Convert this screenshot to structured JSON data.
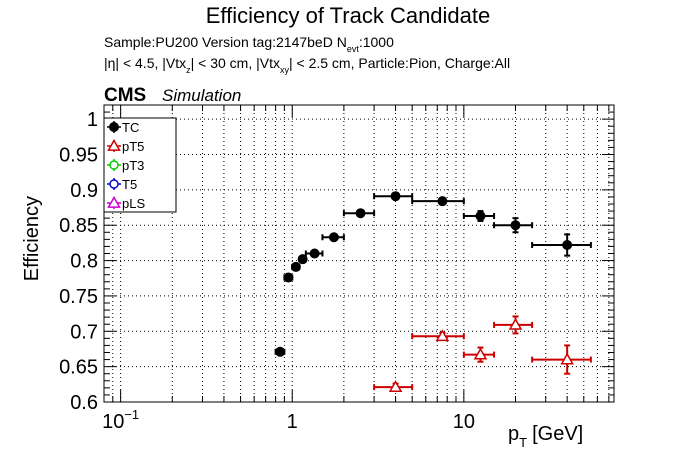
{
  "title": "Efficiency of Track Candidate",
  "info": {
    "sample_prefix": "Sample:PU200   Version tag:2147beD  N",
    "sample_sub": "evt",
    "sample_suffix": ":1000",
    "cuts": [
      {
        "text": "|η| < 4.5, |Vtx",
        "sub": false
      },
      {
        "text": "z",
        "sub": true
      },
      {
        "text": "| < 30 cm, |Vtx",
        "sub": false
      },
      {
        "text": "xy",
        "sub": true
      },
      {
        "text": "| < 2.5 cm, Particle:Pion, Charge:All",
        "sub": false
      }
    ]
  },
  "cms_label": "CMS",
  "simulation_label": "Simulation",
  "chart_data": {
    "type": "scatter",
    "title": "Efficiency of Track Candidate",
    "xlabel": "p",
    "xlabel_sub": "T",
    "xlabel_unit": "[GeV]",
    "ylabel": "Efficiency",
    "x_scale": "log",
    "xlim": [
      0.08,
      75
    ],
    "ylim": [
      0.6,
      1.02
    ],
    "grid": true,
    "legend_position": "top-left",
    "y_ticks": [
      0.6,
      0.65,
      0.7,
      0.75,
      0.8,
      0.85,
      0.9,
      0.95,
      1
    ],
    "y_tick_labels": [
      "0.6",
      "0.65",
      "0.7",
      "0.75",
      "0.8",
      "0.85",
      "0.9",
      "0.95",
      "1"
    ],
    "x_tick_labels": [
      {
        "value": 0.1,
        "base": "10",
        "exp": "−1"
      },
      {
        "value": 1,
        "base": "1",
        "exp": ""
      },
      {
        "value": 10,
        "base": "10",
        "exp": ""
      }
    ],
    "series": [
      {
        "name": "TC",
        "color": "#000000",
        "marker": "circle-filled",
        "points": [
          {
            "x": 0.85,
            "xlo": 0.8,
            "xhi": 0.9,
            "y": 0.671,
            "ylo": 0.667,
            "yhi": 0.675
          },
          {
            "x": 0.95,
            "xlo": 0.9,
            "xhi": 1.0,
            "y": 0.776,
            "ylo": 0.772,
            "yhi": 0.78
          },
          {
            "x": 1.05,
            "xlo": 1.0,
            "xhi": 1.1,
            "y": 0.791,
            "ylo": 0.787,
            "yhi": 0.795
          },
          {
            "x": 1.15,
            "xlo": 1.1,
            "xhi": 1.2,
            "y": 0.802,
            "ylo": 0.798,
            "yhi": 0.806
          },
          {
            "x": 1.35,
            "xlo": 1.2,
            "xhi": 1.5,
            "y": 0.81,
            "ylo": 0.807,
            "yhi": 0.813
          },
          {
            "x": 1.75,
            "xlo": 1.5,
            "xhi": 2.0,
            "y": 0.833,
            "ylo": 0.83,
            "yhi": 0.836
          },
          {
            "x": 2.5,
            "xlo": 2.0,
            "xhi": 3.0,
            "y": 0.867,
            "ylo": 0.864,
            "yhi": 0.87
          },
          {
            "x": 4.0,
            "xlo": 3.0,
            "xhi": 5.0,
            "y": 0.891,
            "ylo": 0.888,
            "yhi": 0.894
          },
          {
            "x": 7.5,
            "xlo": 5.0,
            "xhi": 10.0,
            "y": 0.884,
            "ylo": 0.881,
            "yhi": 0.887
          },
          {
            "x": 12.5,
            "xlo": 10.0,
            "xhi": 15.0,
            "y": 0.863,
            "ylo": 0.856,
            "yhi": 0.87
          },
          {
            "x": 20.0,
            "xlo": 15.0,
            "xhi": 25.0,
            "y": 0.85,
            "ylo": 0.84,
            "yhi": 0.86
          },
          {
            "x": 40.0,
            "xlo": 25.0,
            "xhi": 55.0,
            "y": 0.822,
            "ylo": 0.807,
            "yhi": 0.837
          }
        ]
      },
      {
        "name": "pT5",
        "color": "#cc0000",
        "marker": "triangle-open",
        "points": [
          {
            "x": 4.0,
            "xlo": 3.0,
            "xhi": 5.0,
            "y": 0.621,
            "ylo": 0.616,
            "yhi": 0.626
          },
          {
            "x": 7.5,
            "xlo": 5.0,
            "xhi": 10.0,
            "y": 0.693,
            "ylo": 0.688,
            "yhi": 0.698
          },
          {
            "x": 12.5,
            "xlo": 10.0,
            "xhi": 15.0,
            "y": 0.667,
            "ylo": 0.657,
            "yhi": 0.677
          },
          {
            "x": 20.0,
            "xlo": 15.0,
            "xhi": 25.0,
            "y": 0.709,
            "ylo": 0.697,
            "yhi": 0.721
          },
          {
            "x": 40.0,
            "xlo": 25.0,
            "xhi": 55.0,
            "y": 0.66,
            "ylo": 0.64,
            "yhi": 0.68
          }
        ]
      },
      {
        "name": "pT3",
        "color": "#00cc00",
        "marker": "circle-open",
        "points": []
      },
      {
        "name": "T5",
        "color": "#0000cc",
        "marker": "circle-open",
        "points": []
      },
      {
        "name": "pLS",
        "color": "#cc00cc",
        "marker": "triangle-open",
        "points": []
      }
    ]
  }
}
